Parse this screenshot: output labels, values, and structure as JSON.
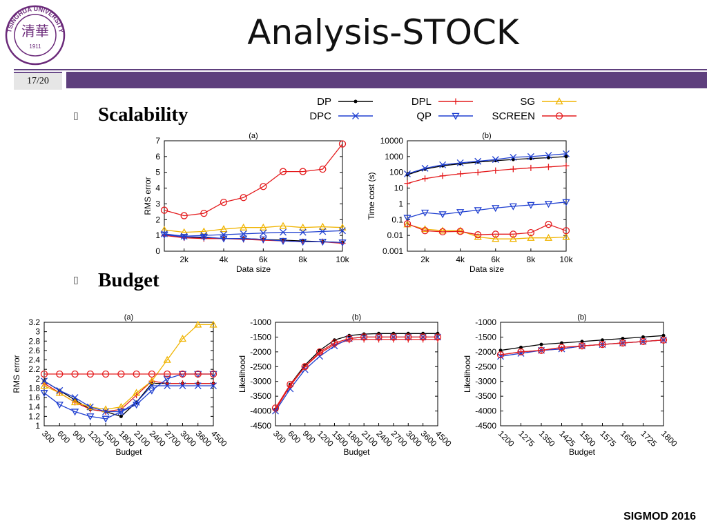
{
  "slide": {
    "title": "Analysis-STOCK",
    "page": "17/20",
    "footer": "SIGMOD 2016",
    "logo_text": {
      "top": "TSINGHUA UNIVERSITY",
      "year": "1911"
    },
    "bullets": [
      {
        "mark": "▯",
        "text": "Scalability"
      },
      {
        "mark": "▯",
        "text": "Budget"
      }
    ],
    "colors": {
      "accent": "#5e3f7d",
      "page_bg": "#e6e6e6",
      "logo": "#6b2a7a"
    }
  },
  "legend": [
    {
      "name": "DP",
      "color": "#000000",
      "marker": "dot"
    },
    {
      "name": "DPL",
      "color": "#e41a1c",
      "marker": "plus"
    },
    {
      "name": "SG",
      "color": "#f0b400",
      "marker": "triangle"
    },
    {
      "name": "DPC",
      "color": "#1f3fd0",
      "marker": "cross"
    },
    {
      "name": "QP",
      "color": "#1f3fd0",
      "marker": "tri-down"
    },
    {
      "name": "SCREEN",
      "color": "#e41a1c",
      "marker": "circle"
    }
  ],
  "chart_data": [
    {
      "id": "scal-a",
      "type": "line",
      "title": "(a)",
      "xlabel": "Data size",
      "ylabel": "RMS error",
      "x": [
        1,
        2,
        3,
        4,
        5,
        6,
        7,
        8,
        9,
        10
      ],
      "xticks": [
        2,
        4,
        6,
        8,
        10
      ],
      "xticklabels": [
        "2k",
        "4k",
        "6k",
        "8k",
        "10k"
      ],
      "xlim": [
        1,
        10
      ],
      "ylim": [
        0,
        7
      ],
      "yticks": [
        0,
        1,
        2,
        3,
        4,
        5,
        6,
        7
      ],
      "yscale": "linear",
      "series": [
        {
          "name": "DP",
          "values": [
            1.0,
            0.9,
            0.85,
            0.8,
            0.8,
            0.75,
            0.7,
            0.65,
            0.6,
            0.55
          ]
        },
        {
          "name": "DPL",
          "values": [
            1.0,
            0.85,
            0.8,
            0.8,
            0.75,
            0.7,
            0.65,
            0.6,
            0.6,
            0.5
          ]
        },
        {
          "name": "SG",
          "values": [
            1.35,
            1.2,
            1.25,
            1.4,
            1.5,
            1.5,
            1.6,
            1.5,
            1.55,
            1.5
          ]
        },
        {
          "name": "DPC",
          "values": [
            1.1,
            0.95,
            1.0,
            1.05,
            1.1,
            1.15,
            1.2,
            1.2,
            1.25,
            1.3
          ]
        },
        {
          "name": "QP",
          "values": [
            1.05,
            0.9,
            0.9,
            0.8,
            0.8,
            0.75,
            0.65,
            0.6,
            0.6,
            0.55
          ]
        },
        {
          "name": "SCREEN",
          "values": [
            2.6,
            2.25,
            2.4,
            3.1,
            3.4,
            4.1,
            5.05,
            5.05,
            5.2,
            6.8
          ]
        }
      ]
    },
    {
      "id": "scal-b",
      "type": "line",
      "title": "(b)",
      "xlabel": "Data size",
      "ylabel": "Time cost (s)",
      "x": [
        1,
        2,
        3,
        4,
        5,
        6,
        7,
        8,
        9,
        10
      ],
      "xticks": [
        2,
        4,
        6,
        8,
        10
      ],
      "xticklabels": [
        "2k",
        "4k",
        "6k",
        "8k",
        "10k"
      ],
      "xlim": [
        1,
        10
      ],
      "ylim": [
        0.001,
        10000
      ],
      "yscale": "log",
      "yticks": [
        0.001,
        0.01,
        0.1,
        1,
        10,
        100,
        1000,
        10000
      ],
      "yticklabels": [
        "0.001",
        "0.01",
        "0.1",
        "1",
        "10",
        "100",
        "1000",
        "10000"
      ],
      "series": [
        {
          "name": "DP",
          "values": [
            70,
            160,
            260,
            350,
            450,
            550,
            650,
            750,
            850,
            1000
          ]
        },
        {
          "name": "DPL",
          "values": [
            20,
            40,
            60,
            80,
            100,
            130,
            160,
            190,
            220,
            260
          ]
        },
        {
          "name": "SG",
          "values": [
            0.05,
            0.025,
            0.02,
            0.02,
            0.008,
            0.006,
            0.006,
            0.007,
            0.007,
            0.008
          ]
        },
        {
          "name": "DPC",
          "values": [
            80,
            180,
            300,
            400,
            500,
            650,
            900,
            1000,
            1200,
            1500
          ]
        },
        {
          "name": "QP",
          "values": [
            0.13,
            0.28,
            0.22,
            0.3,
            0.4,
            0.55,
            0.7,
            0.85,
            1.0,
            1.3
          ]
        },
        {
          "name": "SCREEN",
          "values": [
            0.055,
            0.02,
            0.017,
            0.018,
            0.011,
            0.012,
            0.012,
            0.015,
            0.05,
            0.02
          ]
        }
      ]
    },
    {
      "id": "bud-a",
      "type": "line",
      "title": "(a)",
      "xlabel": "Budget",
      "ylabel": "RMS error",
      "categories": [
        "300",
        "600",
        "900",
        "1200",
        "1500",
        "1800",
        "2100",
        "2400",
        "2700",
        "3000",
        "3600",
        "4500"
      ],
      "ylim": [
        1,
        3.2
      ],
      "yticks": [
        1,
        1.2,
        1.4,
        1.6,
        1.8,
        2,
        2.2,
        2.4,
        2.6,
        2.8,
        3,
        3.2
      ],
      "yticklabels": [
        "1",
        "1.2",
        "1.4",
        "1.6",
        "1.8",
        "2",
        "2.2",
        "2.4",
        "2.6",
        "2.8",
        "3",
        "3.2"
      ],
      "yscale": "linear",
      "series": [
        {
          "name": "DP",
          "values": [
            1.95,
            1.75,
            1.55,
            1.35,
            1.3,
            1.2,
            1.5,
            1.9,
            1.9,
            1.9,
            1.9,
            1.9
          ]
        },
        {
          "name": "DPL",
          "values": [
            1.9,
            1.7,
            1.5,
            1.35,
            1.3,
            1.35,
            1.65,
            1.95,
            1.9,
            1.9,
            1.9,
            1.9
          ]
        },
        {
          "name": "SG",
          "values": [
            1.85,
            1.7,
            1.5,
            1.4,
            1.35,
            1.4,
            1.7,
            1.95,
            2.4,
            2.85,
            3.15,
            3.15
          ]
        },
        {
          "name": "DPC",
          "values": [
            1.95,
            1.75,
            1.6,
            1.4,
            1.3,
            1.3,
            1.5,
            1.85,
            1.85,
            1.85,
            1.85,
            1.85
          ]
        },
        {
          "name": "QP",
          "values": [
            1.7,
            1.45,
            1.3,
            1.2,
            1.15,
            1.3,
            1.45,
            1.75,
            2.0,
            2.1,
            2.1,
            2.1
          ]
        },
        {
          "name": "SCREEN",
          "values": [
            2.1,
            2.1,
            2.1,
            2.1,
            2.1,
            2.1,
            2.1,
            2.1,
            2.1,
            2.1,
            2.1,
            2.1
          ]
        }
      ]
    },
    {
      "id": "bud-b",
      "type": "line",
      "title": "(b)",
      "xlabel": "Budget",
      "ylabel": "Likelihood",
      "categories": [
        "300",
        "600",
        "900",
        "1200",
        "1500",
        "1800",
        "2100",
        "2400",
        "2700",
        "3000",
        "3600",
        "4500"
      ],
      "ylim": [
        -4500,
        -1000
      ],
      "yscale": "linear",
      "yticks": [
        -4500,
        -4000,
        -3500,
        -3000,
        -2500,
        -2000,
        -1500,
        -1000
      ],
      "yticklabels": [
        "-4500",
        "-4000",
        "-3500",
        "-3000",
        "-2500",
        "-2000",
        "-1500",
        "-1000"
      ],
      "series": [
        {
          "name": "DP",
          "values": [
            -3950,
            -3100,
            -2450,
            -1950,
            -1600,
            -1450,
            -1400,
            -1380,
            -1380,
            -1380,
            -1380,
            -1380
          ]
        },
        {
          "name": "DPL",
          "values": [
            -3950,
            -3150,
            -2500,
            -2050,
            -1750,
            -1600,
            -1580,
            -1580,
            -1580,
            -1580,
            -1580,
            -1580
          ]
        },
        {
          "name": "DPC",
          "values": [
            -4000,
            -3250,
            -2600,
            -2150,
            -1800,
            -1550,
            -1500,
            -1500,
            -1500,
            -1500,
            -1500,
            -1500
          ]
        },
        {
          "name": "SCREEN",
          "values": [
            -3900,
            -3100,
            -2500,
            -2000,
            -1700,
            -1550,
            -1500,
            -1500,
            -1500,
            -1500,
            -1500,
            -1500
          ]
        }
      ]
    },
    {
      "id": "bud-c",
      "type": "line",
      "title": "(b)",
      "xlabel": "Budget",
      "ylabel": "Likelihood",
      "categories": [
        "1200",
        "1275",
        "1350",
        "1425",
        "1500",
        "1575",
        "1650",
        "1725",
        "1800"
      ],
      "ylim": [
        -4500,
        -1000
      ],
      "yscale": "linear",
      "yticks": [
        -4500,
        -4000,
        -3500,
        -3000,
        -2500,
        -2000,
        -1500,
        -1000
      ],
      "yticklabels": [
        "-4500",
        "-4000",
        "-3500",
        "-3000",
        "-2500",
        "-2000",
        "-1500",
        "-1000"
      ],
      "series": [
        {
          "name": "DP",
          "values": [
            -1950,
            -1850,
            -1750,
            -1700,
            -1650,
            -1600,
            -1550,
            -1500,
            -1450
          ]
        },
        {
          "name": "DPL",
          "values": [
            -2100,
            -2000,
            -1950,
            -1900,
            -1800,
            -1750,
            -1700,
            -1650,
            -1600
          ]
        },
        {
          "name": "DPC",
          "values": [
            -2150,
            -2050,
            -1950,
            -1900,
            -1800,
            -1750,
            -1700,
            -1650,
            -1600
          ]
        },
        {
          "name": "SCREEN",
          "values": [
            -2100,
            -2000,
            -1950,
            -1850,
            -1800,
            -1750,
            -1700,
            -1650,
            -1600
          ]
        }
      ]
    }
  ]
}
